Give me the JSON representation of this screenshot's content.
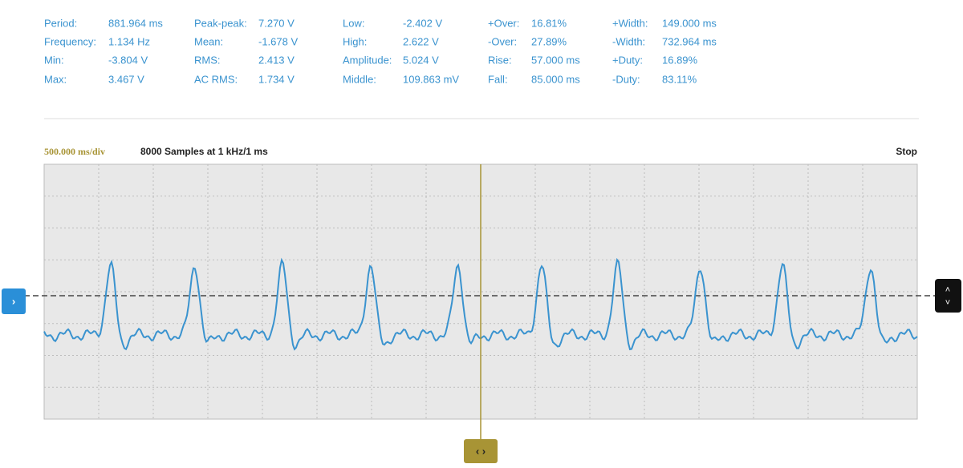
{
  "measurements": [
    [
      {
        "label": "Period:",
        "value": "881.964 ms"
      },
      {
        "label": "Frequency:",
        "value": "1.134 Hz"
      },
      {
        "label": "Min:",
        "value": "-3.804 V"
      },
      {
        "label": "Max:",
        "value": "3.467 V"
      }
    ],
    [
      {
        "label": "Peak-peak:",
        "value": "7.270 V"
      },
      {
        "label": "Mean:",
        "value": "-1.678 V"
      },
      {
        "label": "RMS:",
        "value": "2.413 V"
      },
      {
        "label": "AC RMS:",
        "value": "1.734 V"
      }
    ],
    [
      {
        "label": "Low:",
        "value": "-2.402 V"
      },
      {
        "label": "High:",
        "value": "2.622 V"
      },
      {
        "label": "Amplitude:",
        "value": "5.024 V"
      },
      {
        "label": "Middle:",
        "value": "109.863 mV"
      }
    ],
    [
      {
        "label": "+Over:",
        "value": "16.81%"
      },
      {
        "label": "-Over:",
        "value": "27.89%"
      },
      {
        "label": "Rise:",
        "value": "57.000 ms"
      },
      {
        "label": "Fall:",
        "value": "85.000 ms"
      }
    ],
    [
      {
        "label": "+Width:",
        "value": "149.000 ms"
      },
      {
        "label": "-Width:",
        "value": "732.964 ms"
      },
      {
        "label": "+Duty:",
        "value": "16.89%"
      },
      {
        "label": "-Duty:",
        "value": "83.11%"
      }
    ]
  ],
  "header": {
    "timebase": "500.000 ms/div",
    "samples": "8000 Samples at 1 kHz/1 ms",
    "status": "Stop"
  }
}
